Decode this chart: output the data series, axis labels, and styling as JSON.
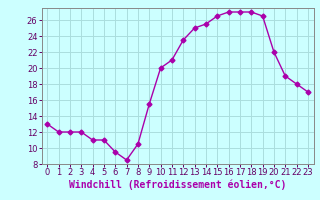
{
  "hours": [
    0,
    1,
    2,
    3,
    4,
    5,
    6,
    7,
    8,
    9,
    10,
    11,
    12,
    13,
    14,
    15,
    16,
    17,
    18,
    19,
    20,
    21,
    22,
    23
  ],
  "windchill": [
    13,
    12,
    12,
    12,
    11,
    11,
    9.5,
    8.5,
    10.5,
    15.5,
    20,
    21,
    23.5,
    25,
    25.5,
    26.5,
    27,
    27,
    27,
    26.5,
    22,
    19,
    18,
    17
  ],
  "line_color": "#aa00aa",
  "marker": "D",
  "marker_size": 2.5,
  "bg_color": "#ccffff",
  "grid_color": "#aadddd",
  "xlabel": "Windchill (Refroidissement éolien,°C)",
  "xlabel_color": "#aa00aa",
  "xlabel_fontsize": 7,
  "xlim": [
    -0.5,
    23.5
  ],
  "ylim": [
    8,
    27.5
  ],
  "yticks": [
    8,
    10,
    12,
    14,
    16,
    18,
    20,
    22,
    24,
    26
  ],
  "xticks": [
    0,
    1,
    2,
    3,
    4,
    5,
    6,
    7,
    8,
    9,
    10,
    11,
    12,
    13,
    14,
    15,
    16,
    17,
    18,
    19,
    20,
    21,
    22,
    23
  ],
  "tick_fontsize": 6,
  "line_width": 1.0
}
